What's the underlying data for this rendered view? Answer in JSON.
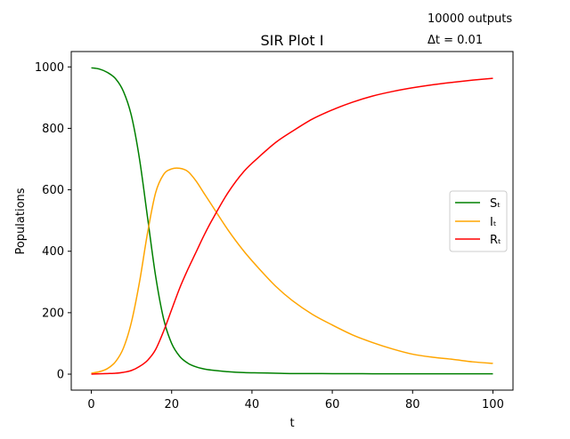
{
  "annotations": {
    "outputs": "10000 outputs",
    "dt": "Δt = 0.01"
  },
  "chart_data": {
    "type": "line",
    "title": "SIR Plot I",
    "xlabel": "t",
    "ylabel": "Populations",
    "xlim": [
      -5,
      105
    ],
    "ylim": [
      -52,
      1050
    ],
    "xticks": [
      0,
      20,
      40,
      60,
      80,
      100
    ],
    "yticks": [
      0,
      200,
      400,
      600,
      800,
      1000
    ],
    "grid": false,
    "legend": {
      "placement": "center-right"
    },
    "x": [
      0,
      2,
      4,
      6,
      8,
      10,
      12,
      14,
      16,
      18,
      20,
      22,
      24,
      26,
      28,
      30,
      34,
      38,
      42,
      46,
      50,
      55,
      60,
      65,
      70,
      75,
      80,
      85,
      90,
      95,
      100
    ],
    "series": [
      {
        "name": "Sₜ",
        "color": "#008000",
        "values": [
          997,
          993,
          982,
          962,
          920,
          840,
          700,
          510,
          320,
          180,
          100,
          58,
          36,
          24,
          17,
          13,
          8,
          5,
          4,
          3,
          2,
          2,
          1.5,
          1.4,
          1.3,
          1.2,
          1.1,
          1.1,
          1.0,
          1.0,
          1.0
        ]
      },
      {
        "name": "Iₜ",
        "color": "#FFA500",
        "values": [
          3,
          8,
          18,
          40,
          85,
          170,
          300,
          460,
          590,
          650,
          668,
          670,
          660,
          630,
          590,
          550,
          470,
          400,
          340,
          285,
          240,
          195,
          160,
          128,
          103,
          82,
          65,
          55,
          48,
          40,
          35
        ]
      },
      {
        "name": "Rₜ",
        "color": "#FF0000",
        "values": [
          0,
          1,
          2,
          3,
          6,
          12,
          25,
          45,
          80,
          140,
          210,
          280,
          340,
          395,
          450,
          500,
          590,
          660,
          710,
          755,
          790,
          830,
          860,
          885,
          905,
          920,
          932,
          942,
          950,
          957,
          963
        ]
      }
    ]
  }
}
